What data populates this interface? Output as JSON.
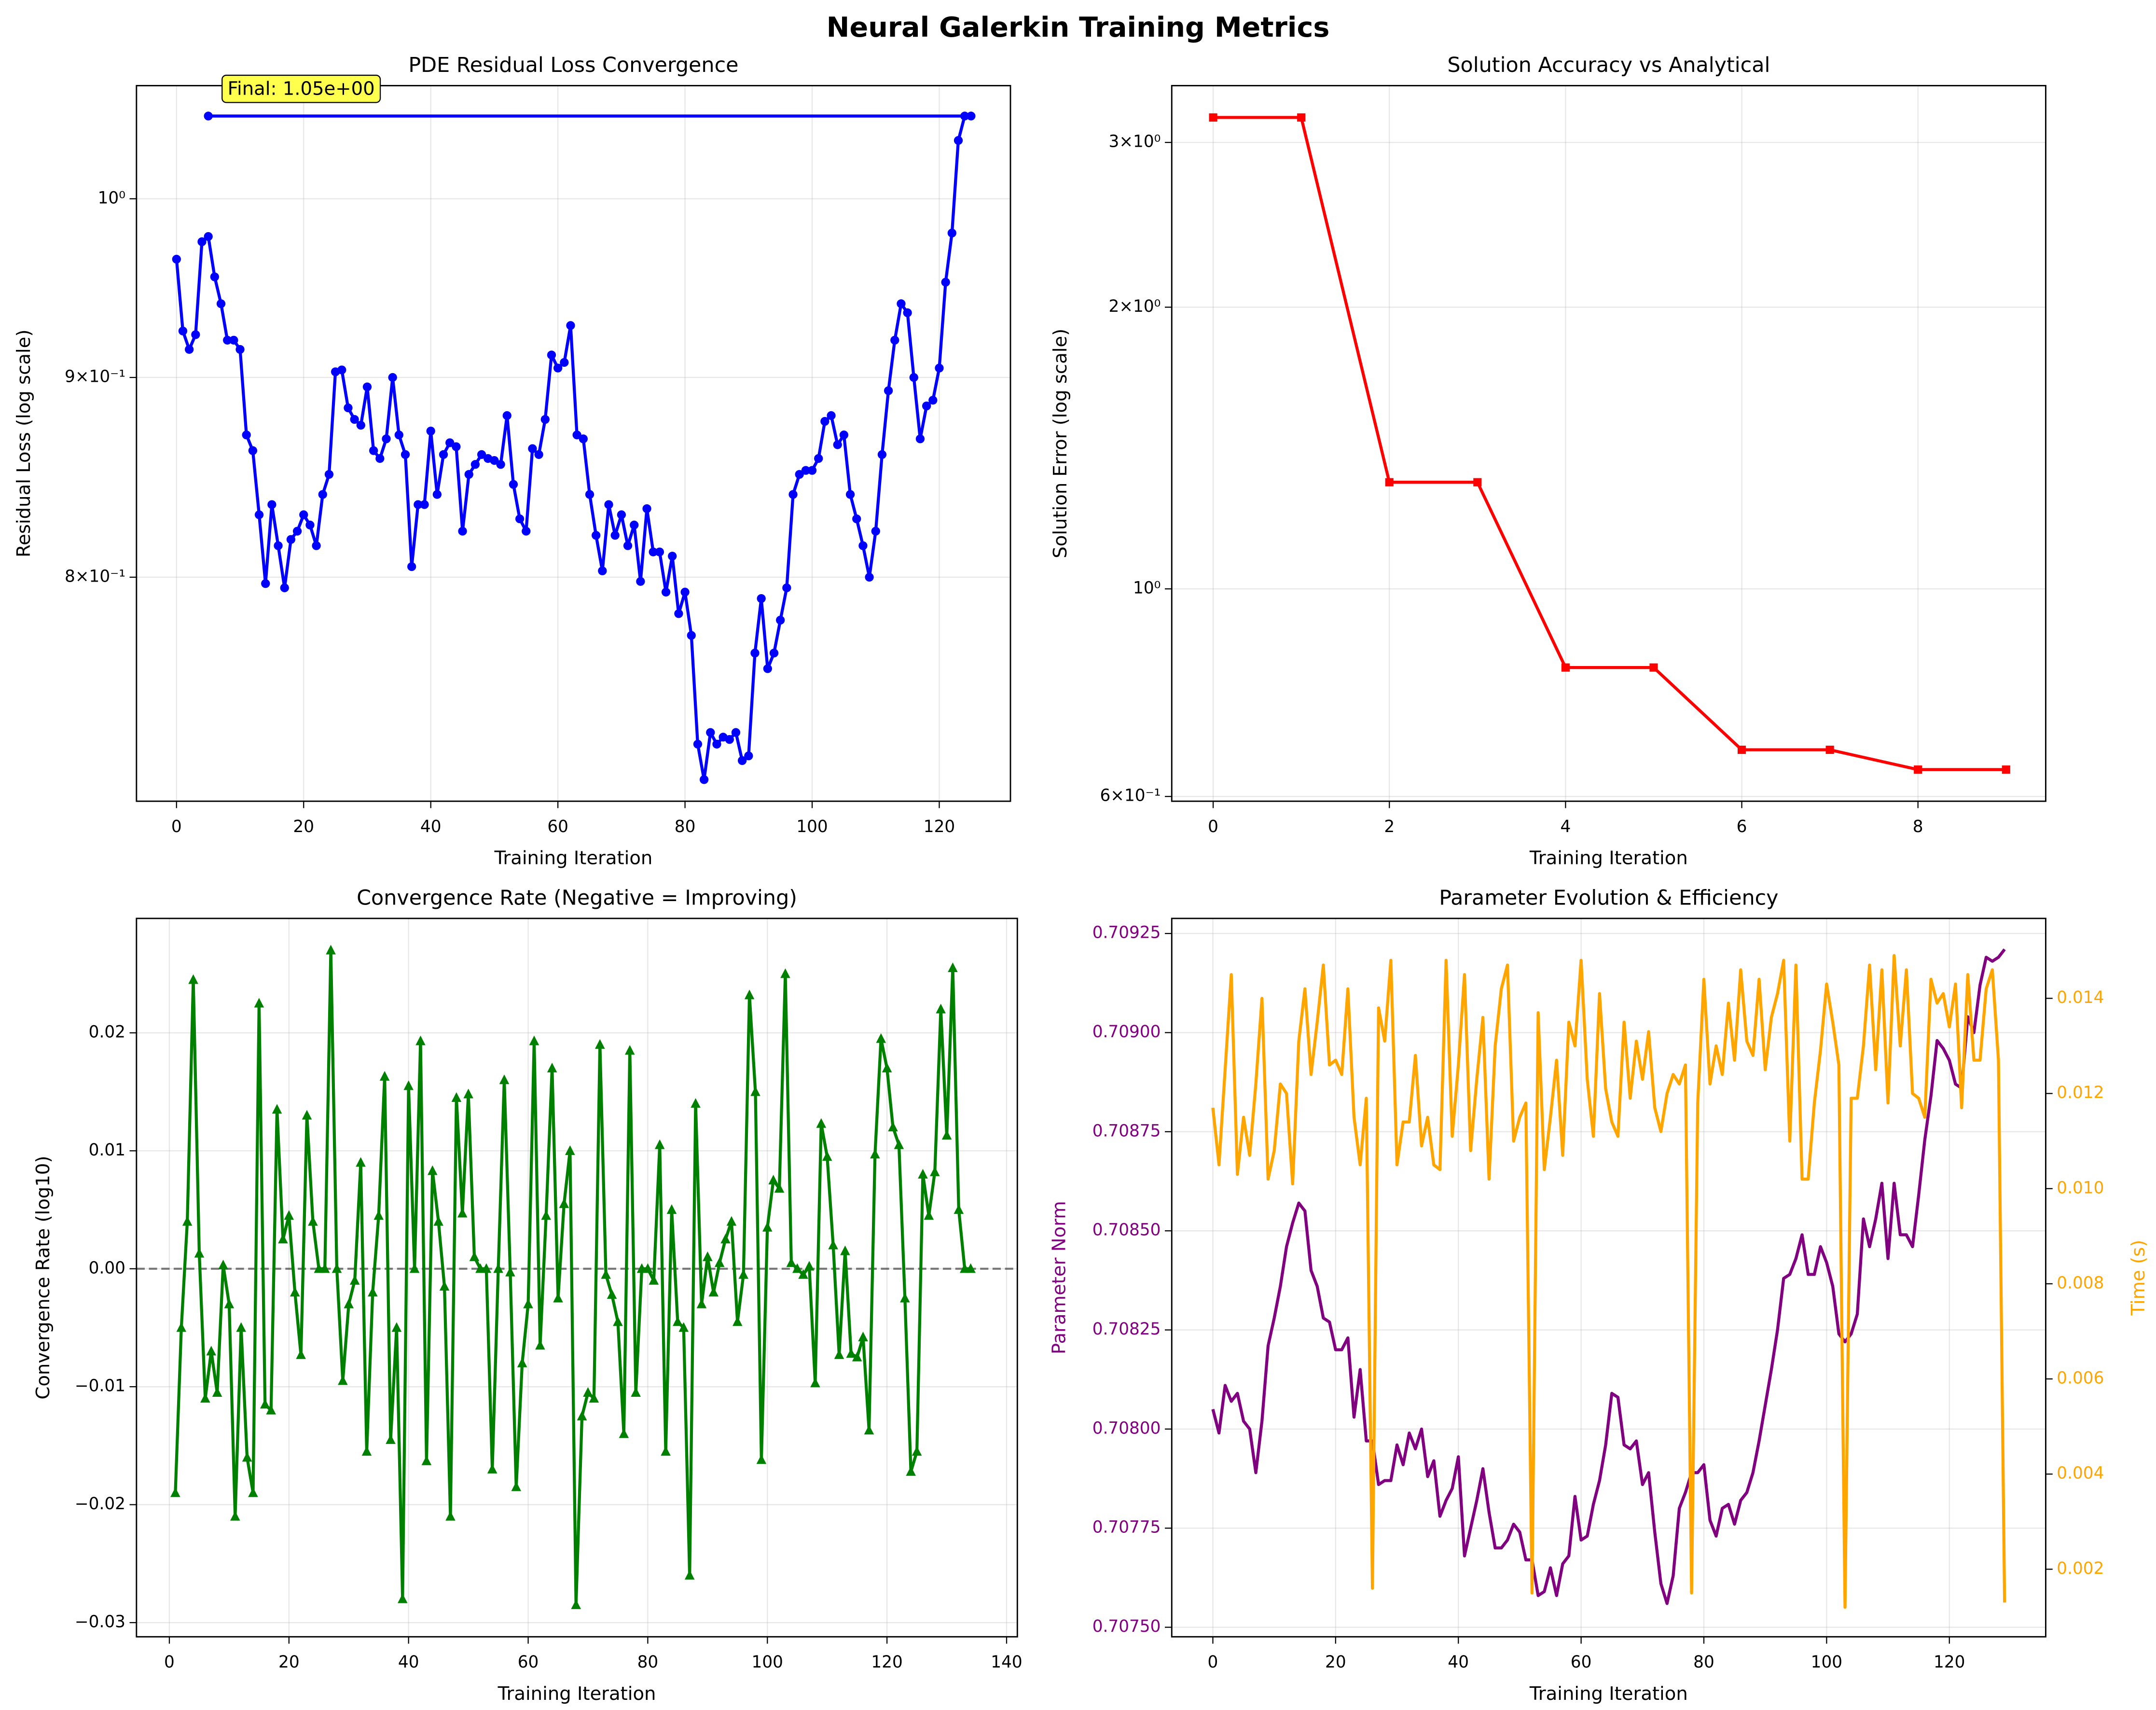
{
  "title": "Neural Galerkin Training Metrics",
  "chart_data": [
    {
      "type": "line",
      "title": "PDE Residual Loss Convergence",
      "xlabel": "Training Iteration",
      "ylabel": "Residual Loss (log scale)",
      "yscale": "log",
      "grid": true,
      "annotation": "Final: 1.05e+00",
      "xlim": [
        -6.3,
        131.2
      ],
      "xticks": [
        0,
        20,
        40,
        60,
        80,
        100,
        120
      ],
      "ylim": [
        0.701,
        1.069
      ],
      "yticks": [
        {
          "value": 0.8,
          "label": "8×10⁻¹"
        },
        {
          "value": 0.9,
          "label": "9×10⁻¹"
        },
        {
          "value": 1,
          "label": "10⁰"
        }
      ],
      "x": [
        0,
        1,
        2,
        3,
        4,
        5,
        6,
        7,
        8,
        9,
        10,
        11,
        12,
        13,
        14,
        15,
        16,
        17,
        18,
        19,
        20,
        21,
        22,
        23,
        24,
        25,
        26,
        27,
        28,
        29,
        30,
        31,
        32,
        33,
        34,
        35,
        36,
        37,
        38,
        39,
        40,
        41,
        42,
        43,
        44,
        45,
        46,
        47,
        48,
        49,
        50,
        51,
        52,
        53,
        54,
        55,
        56,
        57,
        58,
        59,
        60,
        61,
        62,
        63,
        64,
        65,
        66,
        67,
        68,
        69,
        70,
        71,
        72,
        73,
        74,
        75,
        76,
        77,
        78,
        79,
        80,
        81,
        82,
        83,
        84,
        85,
        86,
        87,
        88,
        89,
        90,
        91,
        92,
        93,
        94,
        95,
        96,
        97,
        98,
        99,
        100,
        101,
        102,
        103,
        104,
        105,
        106,
        107,
        108,
        109,
        110,
        111,
        112,
        113,
        114,
        115,
        116,
        117,
        118,
        119,
        120,
        121,
        122,
        123,
        124,
        125,
        5
      ],
      "series": [
        {
          "color": "#0000ff",
          "marker": "o",
          "values": [
            0.965,
            0.925,
            0.915,
            0.923,
            0.975,
            0.978,
            0.955,
            0.94,
            0.92,
            0.92,
            0.915,
            0.87,
            0.862,
            0.83,
            0.797,
            0.835,
            0.815,
            0.795,
            0.818,
            0.822,
            0.83,
            0.825,
            0.815,
            0.84,
            0.85,
            0.903,
            0.904,
            0.884,
            0.878,
            0.875,
            0.895,
            0.862,
            0.858,
            0.868,
            0.9,
            0.87,
            0.86,
            0.805,
            0.835,
            0.835,
            0.872,
            0.84,
            0.86,
            0.866,
            0.864,
            0.822,
            0.85,
            0.855,
            0.86,
            0.858,
            0.857,
            0.855,
            0.88,
            0.845,
            0.828,
            0.822,
            0.863,
            0.86,
            0.878,
            0.912,
            0.905,
            0.908,
            0.928,
            0.87,
            0.868,
            0.84,
            0.82,
            0.803,
            0.835,
            0.82,
            0.83,
            0.815,
            0.825,
            0.798,
            0.833,
            0.812,
            0.812,
            0.793,
            0.81,
            0.783,
            0.793,
            0.773,
            0.725,
            0.71,
            0.73,
            0.725,
            0.728,
            0.727,
            0.73,
            0.718,
            0.72,
            0.765,
            0.79,
            0.758,
            0.765,
            0.78,
            0.795,
            0.84,
            0.85,
            0.852,
            0.852,
            0.858,
            0.877,
            0.88,
            0.865,
            0.87,
            0.84,
            0.828,
            0.815,
            0.8,
            0.822,
            0.86,
            0.893,
            0.92,
            0.94,
            0.935,
            0.9,
            0.868,
            0.885,
            0.888,
            0.905,
            0.952,
            0.98,
            1.035,
            1.05,
            1.05,
            1.05
          ]
        }
      ]
    },
    {
      "type": "line",
      "title": "Solution Accuracy vs Analytical",
      "xlabel": "Training Iteration",
      "ylabel": "Solution Error (log scale)",
      "yscale": "log",
      "grid": true,
      "xlim": [
        -0.47,
        9.45
      ],
      "xticks": [
        0,
        2,
        4,
        6,
        8
      ],
      "ylim": [
        0.593,
        3.45
      ],
      "yticks": [
        {
          "value": 0.6,
          "label": "6×10⁻¹"
        },
        {
          "value": 1,
          "label": "10⁰"
        },
        {
          "value": 2,
          "label": "2×10⁰"
        },
        {
          "value": 3,
          "label": "3×10⁰"
        }
      ],
      "x": [
        0,
        1,
        2,
        3,
        4,
        5,
        6,
        7,
        8,
        9
      ],
      "series": [
        {
          "color": "#ff0000",
          "marker": "s",
          "values": [
            3.19,
            3.19,
            1.3,
            1.3,
            0.824,
            0.824,
            0.673,
            0.673,
            0.641,
            0.641
          ]
        }
      ]
    },
    {
      "type": "line",
      "title": "Convergence Rate (Negative = Improving)",
      "xlabel": "Training Iteration",
      "ylabel": "Convergence Rate (log10)",
      "grid": true,
      "hline": 0,
      "xlim": [
        -5.5,
        141.8
      ],
      "xticks": [
        0,
        20,
        40,
        60,
        80,
        100,
        120,
        140
      ],
      "ylim": [
        -0.0312,
        0.0297
      ],
      "yticks": [
        {
          "value": -0.03,
          "label": "−0.03"
        },
        {
          "value": -0.02,
          "label": "−0.02"
        },
        {
          "value": -0.01,
          "label": "−0.01"
        },
        {
          "value": 0,
          "label": "0.00"
        },
        {
          "value": 0.01,
          "label": "0.01"
        },
        {
          "value": 0.02,
          "label": "0.02"
        }
      ],
      "x": [
        1,
        2,
        3,
        4,
        5,
        6,
        7,
        8,
        9,
        10,
        11,
        12,
        13,
        14,
        15,
        16,
        17,
        18,
        19,
        20,
        21,
        22,
        23,
        24,
        25,
        26,
        27,
        28,
        29,
        30,
        31,
        32,
        33,
        34,
        35,
        36,
        37,
        38,
        39,
        40,
        41,
        42,
        43,
        44,
        45,
        46,
        47,
        48,
        49,
        50,
        51,
        52,
        53,
        54,
        55,
        56,
        57,
        58,
        59,
        60,
        61,
        62,
        63,
        64,
        65,
        66,
        67,
        68,
        69,
        70,
        71,
        72,
        73,
        74,
        75,
        76,
        77,
        78,
        79,
        80,
        81,
        82,
        83,
        84,
        85,
        86,
        87,
        88,
        89,
        90,
        91,
        92,
        93,
        94,
        95,
        96,
        97,
        98,
        99,
        100,
        101,
        102,
        103,
        104,
        105,
        106,
        107,
        108,
        109,
        110,
        111,
        112,
        113,
        114,
        115,
        116,
        117,
        118,
        119,
        120,
        121,
        122,
        123,
        124,
        125,
        126,
        127,
        128,
        129,
        130,
        131,
        132,
        133,
        134
      ],
      "series": [
        {
          "color": "#008000",
          "marker": "^",
          "values": [
            -0.019,
            -0.005,
            0.004,
            0.0245,
            0.0013,
            -0.011,
            -0.007,
            -0.0105,
            0.0003,
            -0.003,
            -0.021,
            -0.005,
            -0.016,
            -0.019,
            0.0225,
            -0.0115,
            -0.012,
            0.0135,
            0.0025,
            0.0045,
            -0.002,
            -0.0073,
            0.013,
            0.004,
            0,
            0,
            0.027,
            0,
            -0.0095,
            -0.003,
            -0.001,
            0.009,
            -0.0155,
            -0.002,
            0.0045,
            0.0163,
            -0.0145,
            -0.005,
            -0.028,
            0.0155,
            0,
            0.0193,
            -0.0163,
            0.0083,
            0.004,
            -0.0015,
            -0.021,
            0.0145,
            0.0047,
            0.0148,
            0.001,
            0,
            0,
            -0.017,
            0,
            0.016,
            -0.0003,
            -0.0185,
            -0.008,
            -0.003,
            0.0193,
            -0.0065,
            0.0045,
            0.017,
            -0.0025,
            0.0055,
            0.01,
            -0.0285,
            -0.0125,
            -0.0105,
            -0.011,
            0.019,
            -0.0005,
            -0.0022,
            -0.0045,
            -0.014,
            0.0185,
            -0.0105,
            0,
            0,
            -0.001,
            0.0105,
            -0.0155,
            0.005,
            -0.0045,
            -0.005,
            -0.026,
            0.014,
            -0.003,
            0.001,
            -0.002,
            0.0005,
            0.0025,
            0.004,
            -0.0045,
            -0.0005,
            0.0232,
            0.015,
            -0.0162,
            0.0035,
            0.0075,
            0.0068,
            0.025,
            0.0005,
            0,
            -0.0005,
            0.0002,
            -0.0097,
            0.0123,
            0.0095,
            0.002,
            -0.0073,
            0.0015,
            -0.0072,
            -0.0075,
            -0.0058,
            -0.0137,
            0.0097,
            0.0195,
            0.017,
            0.012,
            0.0105,
            -0.0025,
            -0.0172,
            -0.0155,
            0.008,
            0.0045,
            0.0082,
            0.022,
            0.0113,
            0.0255,
            0.005,
            0,
            0
          ]
        }
      ]
    },
    {
      "type": "line",
      "title": "Parameter Evolution & Efficiency",
      "xlabel": "Training Iteration",
      "ylabel": "Parameter Norm",
      "y2label": "Time (s)",
      "grid": true,
      "xlim": [
        -6.7,
        135.7
      ],
      "xticks": [
        0,
        20,
        40,
        60,
        80,
        100,
        120
      ],
      "ylim": [
        0.707476,
        0.709288
      ],
      "yticks": [
        {
          "value": 0.7075,
          "label": "0.70750"
        },
        0.70775,
        {
          "value": 0.708,
          "label": "0.70800"
        },
        0.70825,
        {
          "value": 0.7085,
          "label": "0.70850"
        },
        0.70875,
        {
          "value": 0.709,
          "label": "0.70900"
        },
        0.70925
      ],
      "y2lim": [
        0.00058,
        0.01568
      ],
      "y2ticks": [
        0.002,
        0.004,
        0.006,
        0.008,
        {
          "value": 0.01,
          "label": "0.010"
        },
        0.012,
        0.014
      ],
      "x": [
        0,
        1,
        2,
        3,
        4,
        5,
        6,
        7,
        8,
        9,
        10,
        11,
        12,
        13,
        14,
        15,
        16,
        17,
        18,
        19,
        20,
        21,
        22,
        23,
        24,
        25,
        26,
        27,
        28,
        29,
        30,
        31,
        32,
        33,
        34,
        35,
        36,
        37,
        38,
        39,
        40,
        41,
        42,
        43,
        44,
        45,
        46,
        47,
        48,
        49,
        50,
        51,
        52,
        53,
        54,
        55,
        56,
        57,
        58,
        59,
        60,
        61,
        62,
        63,
        64,
        65,
        66,
        67,
        68,
        69,
        70,
        71,
        72,
        73,
        74,
        75,
        76,
        77,
        78,
        79,
        80,
        81,
        82,
        83,
        84,
        85,
        86,
        87,
        88,
        89,
        90,
        91,
        92,
        93,
        94,
        95,
        96,
        97,
        98,
        99,
        100,
        101,
        102,
        103,
        104,
        105,
        106,
        107,
        108,
        109,
        110,
        111,
        112,
        113,
        114,
        115,
        116,
        117,
        118,
        119,
        120,
        121,
        122,
        123,
        124,
        125,
        126,
        127,
        128,
        129
      ],
      "series": [
        {
          "color": "#800080",
          "axis": "y",
          "values": [
            0.70805,
            0.70799,
            0.70811,
            0.70807,
            0.70809,
            0.70802,
            0.708,
            0.70789,
            0.70802,
            0.70821,
            0.70828,
            0.70836,
            0.70846,
            0.70852,
            0.70857,
            0.70855,
            0.7084,
            0.70836,
            0.70828,
            0.70827,
            0.7082,
            0.7082,
            0.70823,
            0.70803,
            0.70815,
            0.70797,
            0.70797,
            0.70786,
            0.70787,
            0.70787,
            0.70796,
            0.70791,
            0.70799,
            0.70795,
            0.708,
            0.70788,
            0.70792,
            0.70778,
            0.70782,
            0.70785,
            0.70793,
            0.70768,
            0.70775,
            0.70782,
            0.7079,
            0.70779,
            0.7077,
            0.7077,
            0.70772,
            0.70776,
            0.70774,
            0.70767,
            0.70767,
            0.70758,
            0.70759,
            0.70765,
            0.70758,
            0.70766,
            0.70768,
            0.70783,
            0.70772,
            0.70773,
            0.70781,
            0.70787,
            0.70796,
            0.70809,
            0.70808,
            0.70796,
            0.70795,
            0.70797,
            0.70786,
            0.70789,
            0.70774,
            0.70761,
            0.70756,
            0.70763,
            0.7078,
            0.70784,
            0.70789,
            0.70789,
            0.70791,
            0.70777,
            0.70773,
            0.7078,
            0.70781,
            0.70776,
            0.70782,
            0.70784,
            0.70789,
            0.70797,
            0.70806,
            0.70815,
            0.70825,
            0.70838,
            0.70839,
            0.70843,
            0.70849,
            0.70839,
            0.70839,
            0.70846,
            0.70842,
            0.70836,
            0.70824,
            0.70822,
            0.70824,
            0.70829,
            0.70853,
            0.70846,
            0.70853,
            0.70862,
            0.70843,
            0.70862,
            0.70849,
            0.70849,
            0.70846,
            0.70859,
            0.70873,
            0.70884,
            0.70898,
            0.70896,
            0.70893,
            0.70887,
            0.70886,
            0.70904,
            0.709,
            0.70912,
            0.70919,
            0.70918,
            0.70919,
            0.70921
          ]
        },
        {
          "color": "#ffa500",
          "axis": "y2",
          "values": [
            0.0117,
            0.0105,
            0.0125,
            0.0145,
            0.0103,
            0.0115,
            0.0107,
            0.0122,
            0.014,
            0.0102,
            0.0108,
            0.0122,
            0.012,
            0.0101,
            0.0131,
            0.0142,
            0.0124,
            0.0135,
            0.0147,
            0.0126,
            0.0127,
            0.0124,
            0.0142,
            0.0115,
            0.0105,
            0.0119,
            0.0016,
            0.0138,
            0.0131,
            0.0148,
            0.0105,
            0.0114,
            0.0114,
            0.0128,
            0.0109,
            0.0115,
            0.0105,
            0.0104,
            0.0148,
            0.0111,
            0.0126,
            0.0145,
            0.0108,
            0.0123,
            0.0136,
            0.0102,
            0.013,
            0.0142,
            0.0147,
            0.011,
            0.0115,
            0.0118,
            0.0015,
            0.0137,
            0.0104,
            0.0115,
            0.0127,
            0.0107,
            0.0135,
            0.013,
            0.0148,
            0.0123,
            0.0111,
            0.0141,
            0.0121,
            0.0114,
            0.0111,
            0.0135,
            0.0119,
            0.0131,
            0.0123,
            0.0133,
            0.0117,
            0.0112,
            0.012,
            0.0124,
            0.0122,
            0.0126,
            0.0015,
            0.0118,
            0.0144,
            0.0122,
            0.013,
            0.0124,
            0.0139,
            0.0127,
            0.0146,
            0.0131,
            0.0128,
            0.0144,
            0.0125,
            0.0136,
            0.0141,
            0.0148,
            0.011,
            0.0147,
            0.0102,
            0.0102,
            0.0118,
            0.0129,
            0.0143,
            0.0135,
            0.0126,
            0.0012,
            0.0119,
            0.0119,
            0.013,
            0.0147,
            0.0125,
            0.0146,
            0.0118,
            0.0149,
            0.013,
            0.0146,
            0.012,
            0.0119,
            0.0115,
            0.0144,
            0.0139,
            0.0141,
            0.0134,
            0.0143,
            0.0117,
            0.0145,
            0.0127,
            0.0127,
            0.0142,
            0.0146,
            0.0127,
            0.0013
          ]
        }
      ]
    }
  ]
}
